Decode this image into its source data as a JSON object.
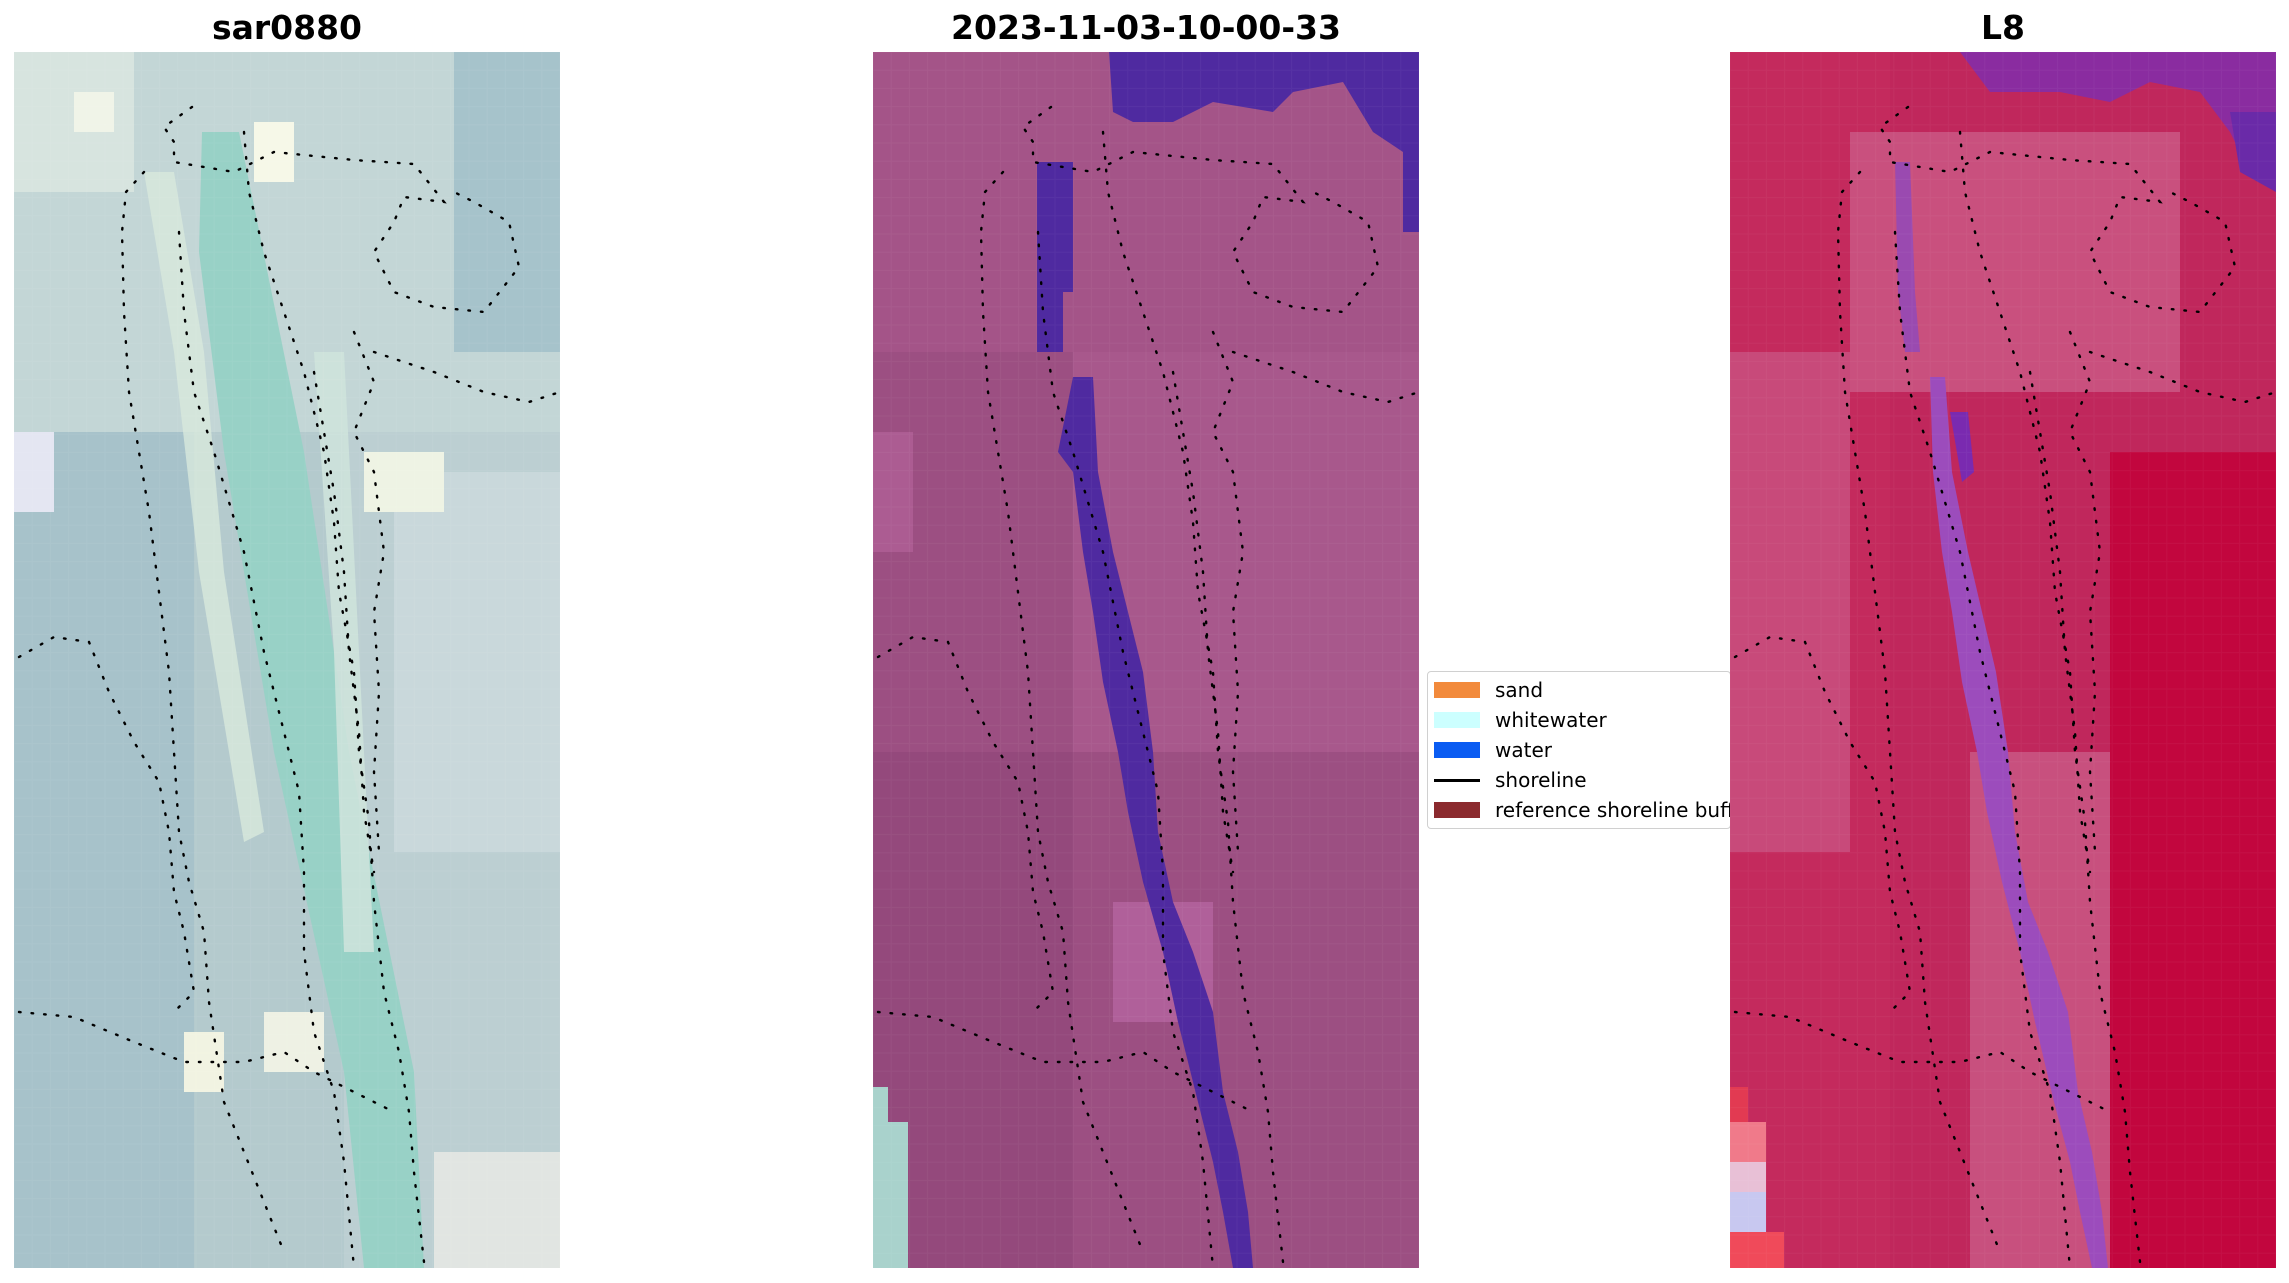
{
  "panels": [
    {
      "title": "sar0880"
    },
    {
      "title": "2023-11-03-10-00-33"
    },
    {
      "title": "L8"
    }
  ],
  "legend": {
    "items": [
      {
        "label": "sand",
        "color": "#f28a3c",
        "kind": "patch"
      },
      {
        "label": "whitewater",
        "color": "#ccffff",
        "kind": "patch"
      },
      {
        "label": "water",
        "color": "#0a5cf2",
        "kind": "patch"
      },
      {
        "label": "shoreline",
        "color": "#000000",
        "kind": "line"
      },
      {
        "label": "reference shoreline buffer",
        "color": "#8b2a2e",
        "kind": "patch"
      }
    ]
  },
  "colors": {
    "panel1_base": "#a9c6c9",
    "panel1_channel": "#98d2c8",
    "panel2_base": "#9c4f82",
    "panel2_water_class": "#4f2aa0",
    "panel3_base": "#c1235a",
    "panel3_accent": "#6a2aa8",
    "shoreline_dots": "#000000"
  }
}
